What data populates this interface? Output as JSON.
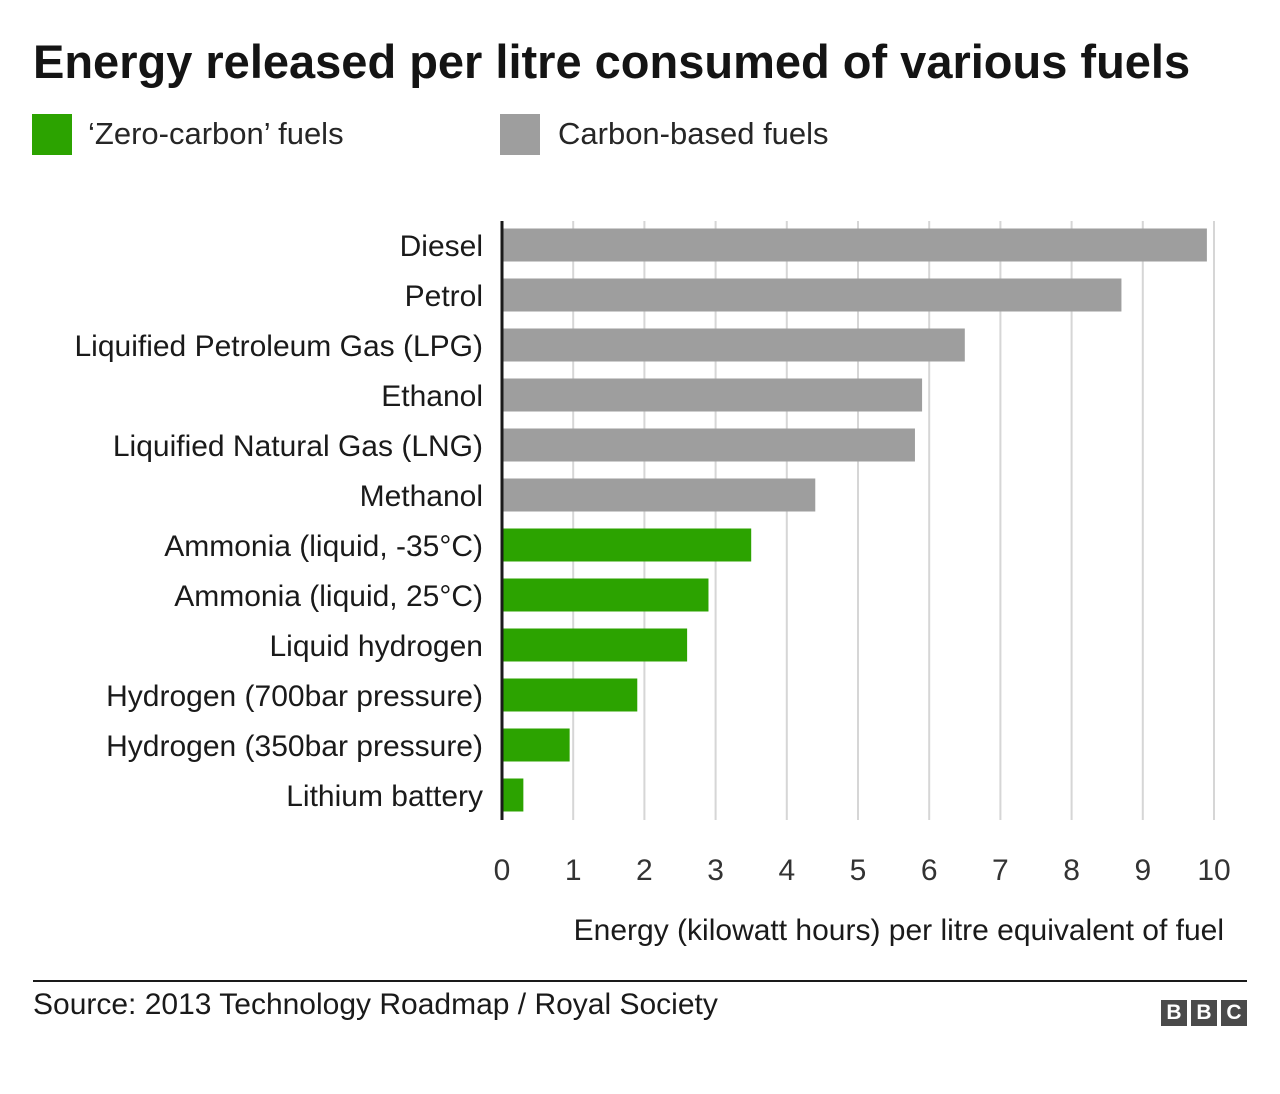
{
  "title": "Energy released per litre consumed of various fuels",
  "legend": [
    {
      "label": "‘Zero-carbon’ fuels",
      "color": "#2ca300"
    },
    {
      "label": "Carbon-based fuels",
      "color": "#9e9e9e"
    }
  ],
  "source": "Source: 2013 Technology Roadmap / Royal Society",
  "logo": [
    "B",
    "B",
    "C"
  ],
  "chart_data": {
    "type": "bar",
    "orientation": "horizontal",
    "title": "Energy released per litre consumed of various fuels",
    "xlabel": "Energy (kilowatt hours) per litre equivalent of fuel",
    "ylabel": "",
    "xlim": [
      0,
      10
    ],
    "xticks": [
      "0",
      "1",
      "2",
      "3",
      "4",
      "5",
      "6",
      "7",
      "8",
      "9",
      "10"
    ],
    "grid": true,
    "legend_position": "top-left",
    "categories": [
      "Diesel",
      "Petrol",
      "Liquified Petroleum Gas (LPG)",
      "Ethanol",
      "Liquified Natural Gas (LNG)",
      "Methanol",
      "Ammonia (liquid, -35°C)",
      "Ammonia (liquid, 25°C)",
      "Liquid hydrogen",
      "Hydrogen (700bar pressure)",
      "Hydrogen (350bar pressure)",
      "Lithium battery"
    ],
    "values": [
      9.9,
      8.7,
      6.5,
      5.9,
      5.8,
      4.4,
      3.5,
      2.9,
      2.6,
      1.9,
      0.95,
      0.3
    ],
    "groups": [
      "Carbon-based fuels",
      "Carbon-based fuels",
      "Carbon-based fuels",
      "Carbon-based fuels",
      "Carbon-based fuels",
      "Carbon-based fuels",
      "‘Zero-carbon’ fuels",
      "‘Zero-carbon’ fuels",
      "‘Zero-carbon’ fuels",
      "‘Zero-carbon’ fuels",
      "‘Zero-carbon’ fuels",
      "‘Zero-carbon’ fuels"
    ],
    "colors": {
      "‘Zero-carbon’ fuels": "#2ca300",
      "Carbon-based fuels": "#9e9e9e"
    },
    "gridline_color": "#d6d6d6",
    "axis_color": "#1a1a1a"
  }
}
